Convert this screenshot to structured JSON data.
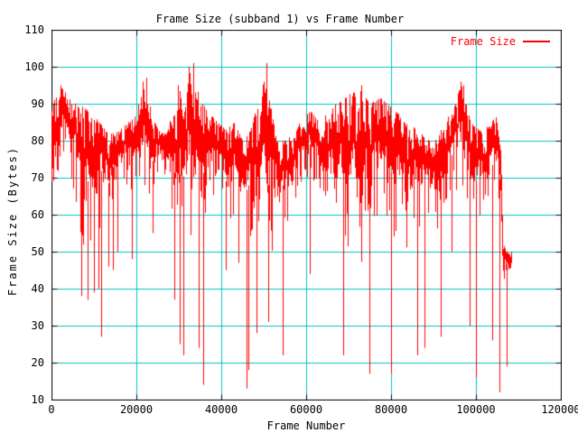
{
  "chart_data": {
    "type": "line",
    "title": "Frame Size (subband 1) vs Frame Number",
    "xlabel": "Frame Number",
    "ylabel": "Frame Size (Bytes)",
    "xlim": [
      0,
      120000
    ],
    "ylim": [
      10,
      110
    ],
    "x_ticks": [
      0,
      20000,
      40000,
      60000,
      80000,
      100000,
      120000
    ],
    "y_ticks": [
      10,
      20,
      30,
      40,
      50,
      60,
      70,
      80,
      90,
      100,
      110
    ],
    "grid": true,
    "legend": {
      "label": "Frame Size",
      "position": "top-right-inside"
    },
    "colors": {
      "series": "#ff0000",
      "grid": "#00c0c0",
      "border": "#000000",
      "background": "#ffffff",
      "text": "#000000"
    },
    "series": [
      {
        "name": "Frame Size",
        "color": "#ff0000",
        "style": "dense-noisy-line",
        "x_start": 0,
        "x_end": 108300,
        "envelope": [
          [
            0,
            53,
            88
          ],
          [
            1000,
            66,
            93
          ],
          [
            2500,
            75,
            95
          ],
          [
            4000,
            72,
            92
          ],
          [
            6000,
            62,
            90
          ],
          [
            7500,
            45,
            89
          ],
          [
            9000,
            52,
            88
          ],
          [
            10500,
            48,
            86
          ],
          [
            12000,
            62,
            84
          ],
          [
            13500,
            55,
            82
          ],
          [
            15000,
            68,
            82
          ],
          [
            17000,
            70,
            84
          ],
          [
            19000,
            62,
            86
          ],
          [
            20500,
            68,
            90
          ],
          [
            22000,
            66,
            95
          ],
          [
            23500,
            60,
            88
          ],
          [
            25000,
            70,
            83
          ],
          [
            27000,
            70,
            82
          ],
          [
            28500,
            55,
            88
          ],
          [
            30000,
            48,
            94
          ],
          [
            31500,
            50,
            90
          ],
          [
            32500,
            55,
            99
          ],
          [
            34000,
            45,
            95
          ],
          [
            35500,
            50,
            90
          ],
          [
            37000,
            65,
            88
          ],
          [
            39000,
            62,
            85
          ],
          [
            41000,
            55,
            83
          ],
          [
            43000,
            57,
            85
          ],
          [
            45000,
            48,
            80
          ],
          [
            46500,
            55,
            82
          ],
          [
            48000,
            45,
            88
          ],
          [
            50000,
            42,
            96
          ],
          [
            51500,
            45,
            90
          ],
          [
            53000,
            58,
            80
          ],
          [
            55000,
            55,
            80
          ],
          [
            57000,
            60,
            82
          ],
          [
            59000,
            68,
            86
          ],
          [
            61000,
            70,
            88
          ],
          [
            63000,
            60,
            85
          ],
          [
            65000,
            58,
            88
          ],
          [
            67000,
            55,
            90
          ],
          [
            69000,
            52,
            92
          ],
          [
            71000,
            48,
            93
          ],
          [
            73000,
            45,
            94
          ],
          [
            75000,
            50,
            90
          ],
          [
            77000,
            58,
            92
          ],
          [
            79000,
            55,
            90
          ],
          [
            81000,
            52,
            88
          ],
          [
            83000,
            48,
            86
          ],
          [
            85000,
            55,
            84
          ],
          [
            87000,
            55,
            82
          ],
          [
            89000,
            60,
            80
          ],
          [
            91000,
            55,
            82
          ],
          [
            93000,
            62,
            86
          ],
          [
            95000,
            65,
            90
          ],
          [
            96500,
            65,
            96
          ],
          [
            98000,
            55,
            88
          ],
          [
            99500,
            52,
            84
          ],
          [
            101000,
            60,
            83
          ],
          [
            103000,
            58,
            84
          ],
          [
            104800,
            66,
            87
          ],
          [
            105600,
            55,
            82
          ],
          [
            106200,
            42,
            52
          ],
          [
            108300,
            42,
            50
          ]
        ],
        "spikes_down": [
          [
            7000,
            38
          ],
          [
            8500,
            37
          ],
          [
            10000,
            39
          ],
          [
            11000,
            40
          ],
          [
            11700,
            27
          ],
          [
            13500,
            46
          ],
          [
            14500,
            45
          ],
          [
            15500,
            50
          ],
          [
            19000,
            48
          ],
          [
            23800,
            55
          ],
          [
            29000,
            37
          ],
          [
            30200,
            25
          ],
          [
            31000,
            22
          ],
          [
            34700,
            24
          ],
          [
            35800,
            14
          ],
          [
            41000,
            45
          ],
          [
            44000,
            47
          ],
          [
            45900,
            13
          ],
          [
            46300,
            18
          ],
          [
            48300,
            28
          ],
          [
            51000,
            31
          ],
          [
            54500,
            22
          ],
          [
            60900,
            44
          ],
          [
            68700,
            22
          ],
          [
            74900,
            17
          ],
          [
            79900,
            17
          ],
          [
            86200,
            22
          ],
          [
            87900,
            24
          ],
          [
            91700,
            27
          ],
          [
            94200,
            50
          ],
          [
            98500,
            30
          ],
          [
            100000,
            16
          ],
          [
            103800,
            26
          ],
          [
            105500,
            12
          ],
          [
            107200,
            19
          ]
        ],
        "spikes_up": [
          [
            2200,
            95
          ],
          [
            21500,
            96
          ],
          [
            22300,
            97
          ],
          [
            29800,
            95
          ],
          [
            32400,
            100
          ],
          [
            33300,
            101
          ],
          [
            50600,
            101
          ],
          [
            73000,
            95
          ],
          [
            96300,
            96
          ],
          [
            97000,
            95
          ]
        ]
      }
    ]
  }
}
